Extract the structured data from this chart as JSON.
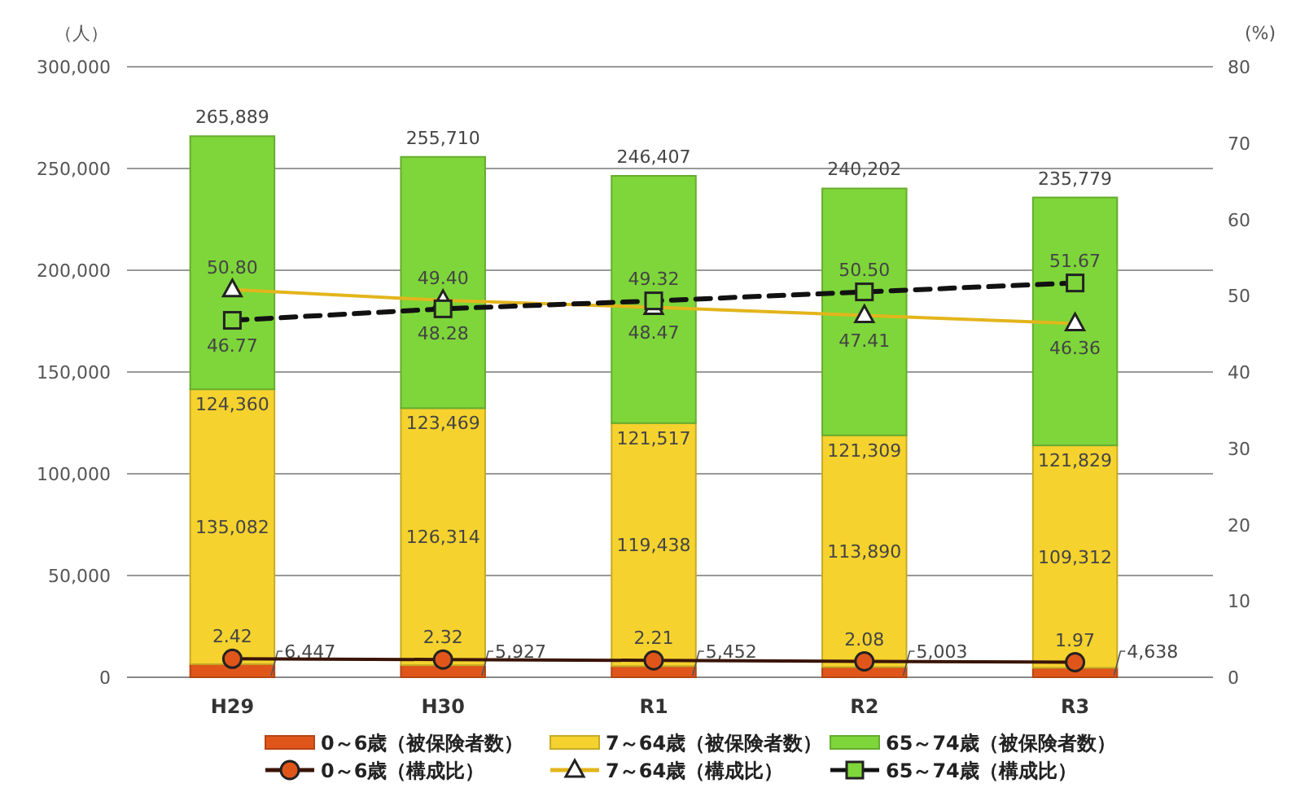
{
  "chart_data": {
    "type": "bar",
    "stacked": true,
    "ylabel": "（人）",
    "y2label": "(%)",
    "categories": [
      "H29",
      "H30",
      "R1",
      "R2",
      "R3"
    ],
    "series": [
      {
        "name": "0～6歳（被保険者数）",
        "color": "#e0561a",
        "values": [
          6447,
          5927,
          5452,
          5003,
          4638
        ],
        "value_labels": [
          "6,447",
          "5,927",
          "5,452",
          "5,003",
          "4,638"
        ]
      },
      {
        "name": "7～64歳（被保険者数）",
        "color": "#f5d22e",
        "values": [
          135082,
          126314,
          119438,
          113890,
          109312
        ],
        "value_labels": [
          "135,082",
          "126,314",
          "119,438",
          "113,890",
          "109,312"
        ]
      },
      {
        "name": "65～74歳（被保険者数）",
        "color": "#7ed63a",
        "values": [
          124360,
          123469,
          121517,
          121309,
          121829
        ],
        "value_labels": [
          "124,360",
          "123,469",
          "121,517",
          "121,309",
          "121,829"
        ]
      },
      {
        "name": "0～6歳（構成比）",
        "type": "line",
        "axis": "y2",
        "color": "#3a1408",
        "marker": "circle",
        "line_style": "solid",
        "values": [
          2.42,
          2.32,
          2.21,
          2.08,
          1.97
        ],
        "value_labels": [
          "2.42",
          "2.32",
          "2.21",
          "2.08",
          "1.97"
        ]
      },
      {
        "name": "7～64歳（構成比）",
        "type": "line",
        "axis": "y2",
        "color": "#e3b51c",
        "marker": "triangle",
        "line_style": "solid",
        "values": [
          50.8,
          49.4,
          48.47,
          47.41,
          46.36
        ],
        "value_labels": [
          "50.80",
          "49.40",
          "48.47",
          "47.41",
          "46.36"
        ]
      },
      {
        "name": "65～74歳（構成比）",
        "type": "line",
        "axis": "y2",
        "color": "#111111",
        "marker": "square",
        "line_style": "dashed",
        "values": [
          46.77,
          48.28,
          49.32,
          50.5,
          51.67
        ],
        "value_labels": [
          "46.77",
          "48.28",
          "49.32",
          "50.50",
          "51.67"
        ]
      }
    ],
    "totals": [
      "265,889",
      "255,710",
      "246,407",
      "240,202",
      "235,779"
    ],
    "ylim": [
      0,
      300000
    ],
    "yticks": [
      {
        "value": 0,
        "label": "0"
      },
      {
        "value": 50000,
        "label": "50,000"
      },
      {
        "value": 100000,
        "label": "100,000"
      },
      {
        "value": 150000,
        "label": "150,000"
      },
      {
        "value": 200000,
        "label": "200,000"
      },
      {
        "value": 250000,
        "label": "250,000"
      },
      {
        "value": 300000,
        "label": "300,000"
      }
    ],
    "y2lim": [
      0,
      80
    ],
    "y2ticks": [
      0,
      10,
      20,
      30,
      40,
      50,
      60,
      70,
      80
    ],
    "grid": "y",
    "legend": "bottom"
  }
}
